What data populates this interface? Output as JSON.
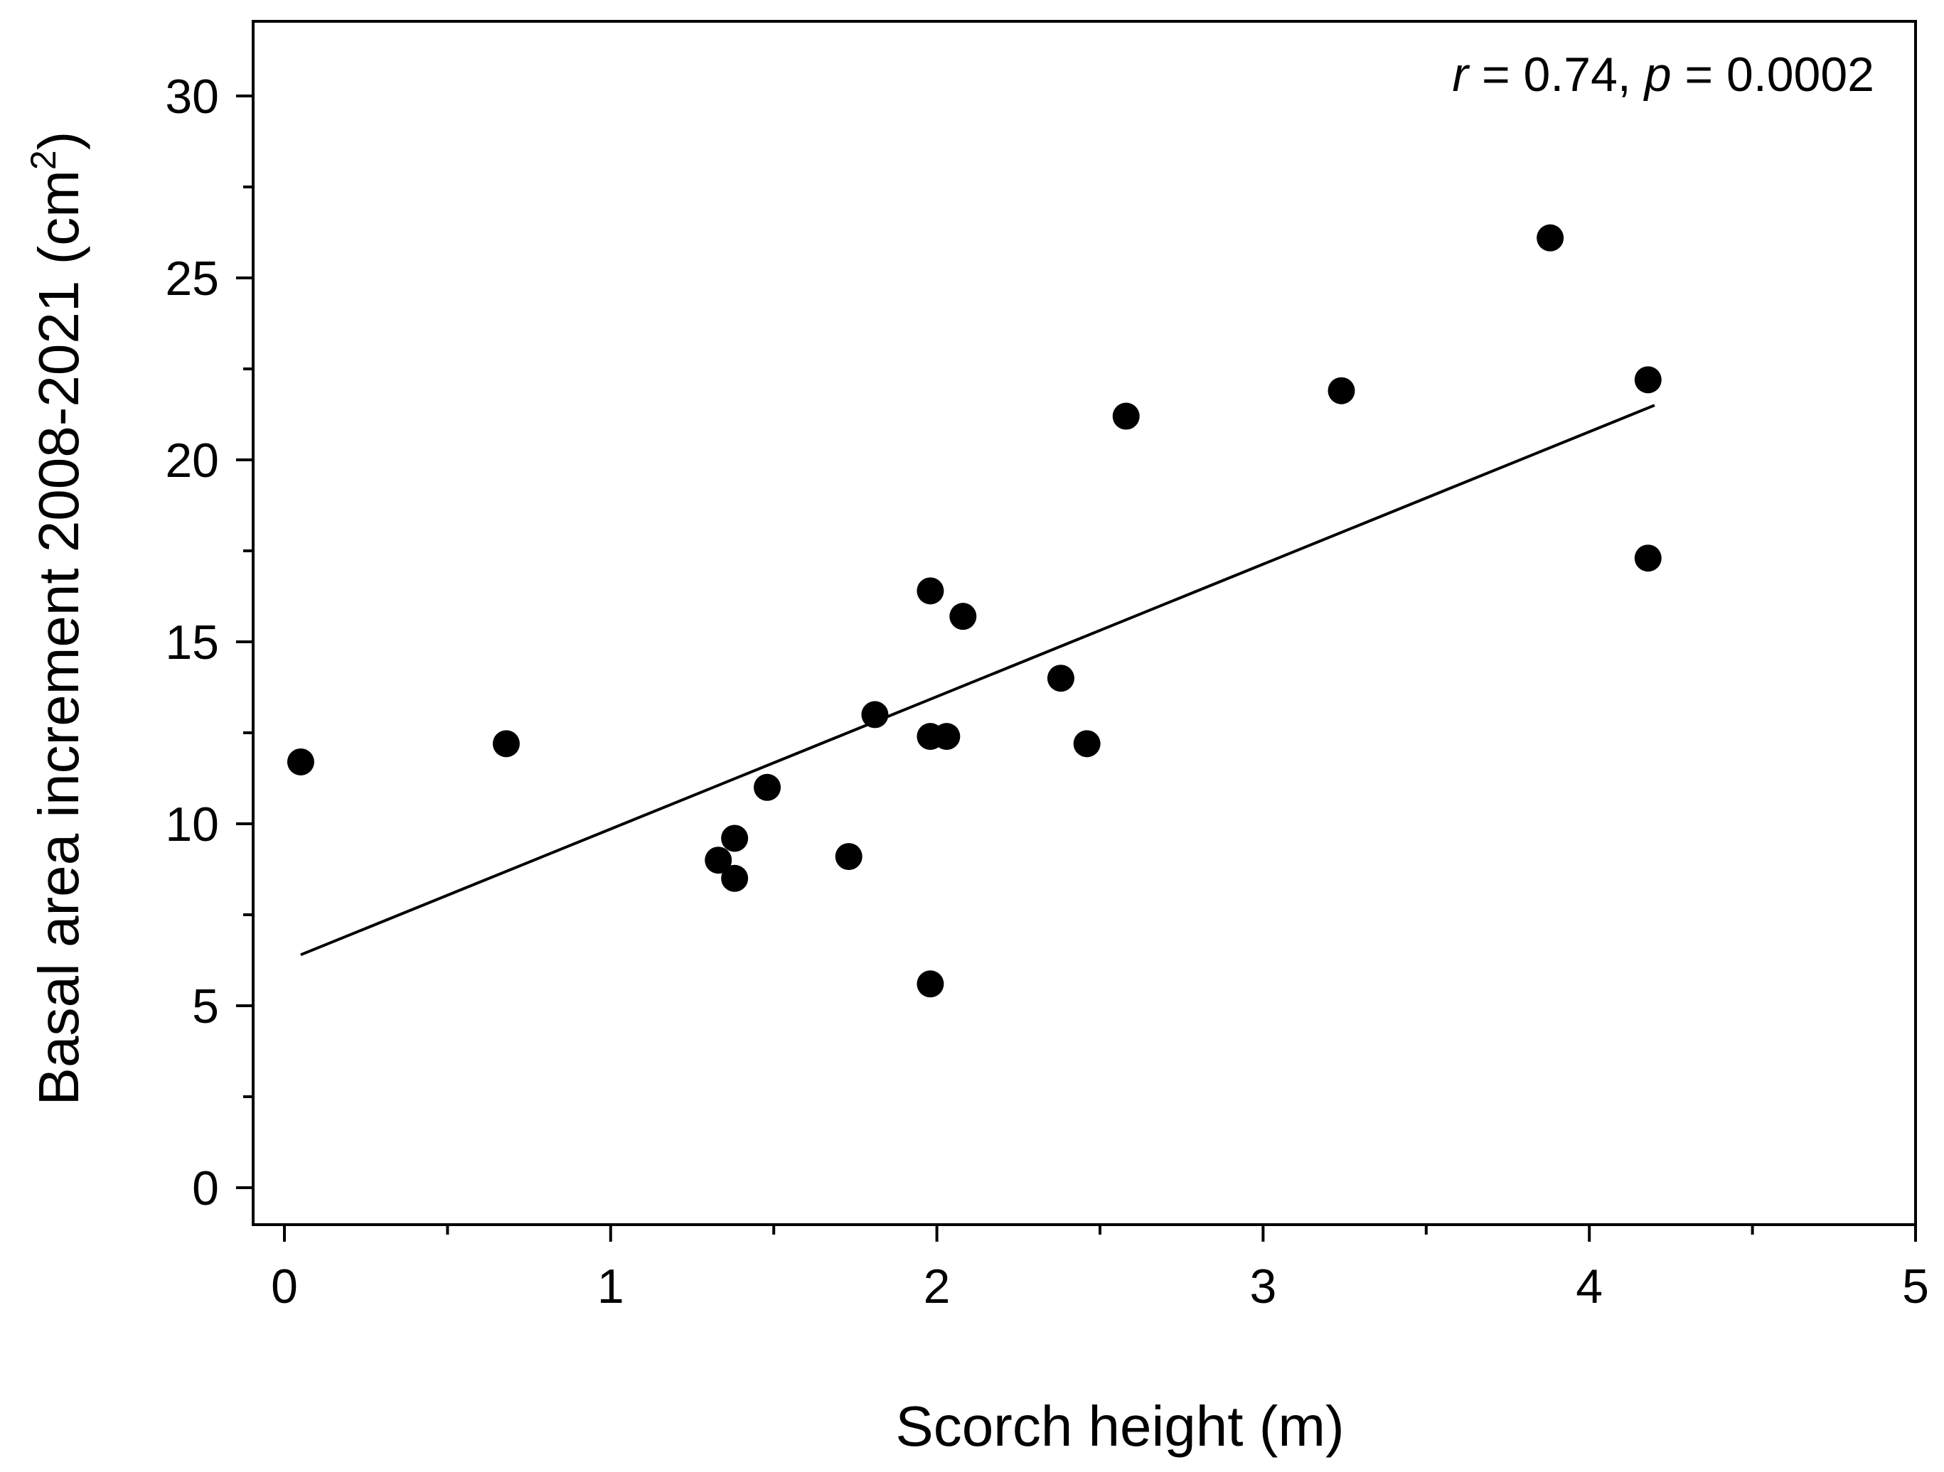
{
  "chart_data": {
    "type": "scatter",
    "title": "",
    "xlabel": "Scorch height (m)",
    "ylabel_main": "Basal area increment 2008-2021 (cm",
    "ylabel_sup": "2",
    "ylabel_close": ")",
    "xlim": [
      0,
      5
    ],
    "ylim": [
      0,
      32
    ],
    "x_ticks": [
      0,
      1,
      2,
      3,
      4,
      5
    ],
    "x_minor_ticks": [
      0.5,
      1.5,
      2.5,
      3.5,
      4.5
    ],
    "y_ticks": [
      0,
      5,
      10,
      15,
      20,
      25,
      30
    ],
    "y_minor_ticks": [
      2.5,
      7.5,
      12.5,
      17.5,
      22.5,
      27.5
    ],
    "x_tick_labels": [
      "0",
      "1",
      "2",
      "3",
      "4",
      "5"
    ],
    "y_tick_labels": [
      "0",
      "5",
      "10",
      "15",
      "20",
      "25",
      "30"
    ],
    "grid": false,
    "annotation": {
      "r_symbol": "r",
      "r_text": " = 0.74, ",
      "p_symbol": "p",
      "p_text": " = 0.0002",
      "placement": "top-right"
    },
    "series": [
      {
        "marker": "circle",
        "color": "#000000",
        "points": [
          {
            "x": 0.05,
            "y": 11.7
          },
          {
            "x": 0.68,
            "y": 12.2
          },
          {
            "x": 1.33,
            "y": 9.0
          },
          {
            "x": 1.38,
            "y": 9.6
          },
          {
            "x": 1.38,
            "y": 8.5
          },
          {
            "x": 1.48,
            "y": 11.0
          },
          {
            "x": 1.73,
            "y": 9.1
          },
          {
            "x": 1.81,
            "y": 13.0
          },
          {
            "x": 1.98,
            "y": 16.4
          },
          {
            "x": 1.98,
            "y": 12.4
          },
          {
            "x": 2.03,
            "y": 12.4
          },
          {
            "x": 2.08,
            "y": 15.7
          },
          {
            "x": 1.98,
            "y": 5.6
          },
          {
            "x": 2.38,
            "y": 14.0
          },
          {
            "x": 2.46,
            "y": 12.2
          },
          {
            "x": 2.58,
            "y": 21.2
          },
          {
            "x": 3.24,
            "y": 21.9
          },
          {
            "x": 3.88,
            "y": 26.1
          },
          {
            "x": 4.18,
            "y": 22.2
          },
          {
            "x": 4.18,
            "y": 17.3
          }
        ]
      }
    ],
    "fit_line": {
      "color": "#000000",
      "x": [
        0.05,
        4.2
      ],
      "y": [
        6.4,
        21.5
      ]
    }
  }
}
